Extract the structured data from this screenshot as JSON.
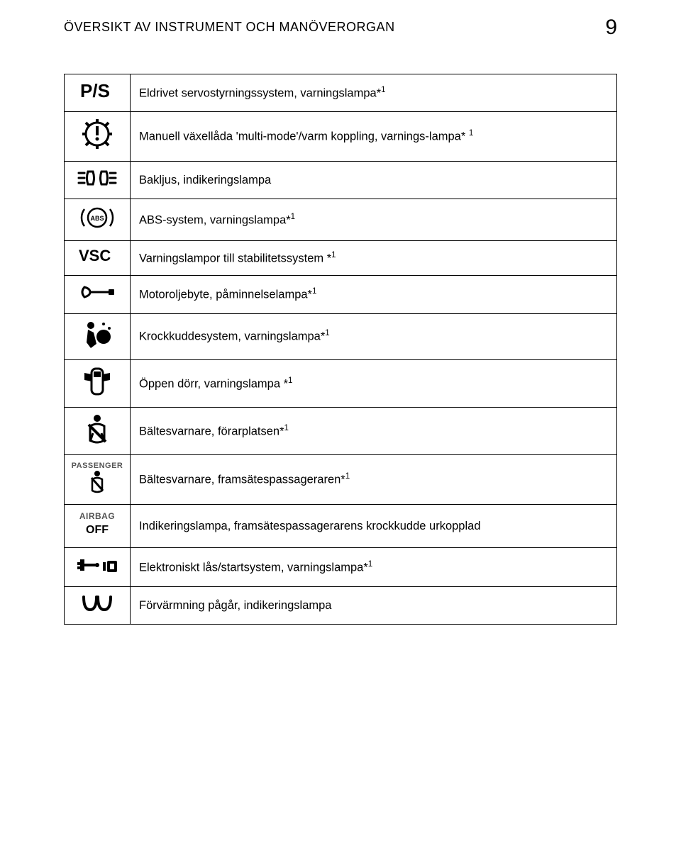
{
  "header": {
    "title": "ÖVERSIKT AV INSTRUMENT OCH MANÖVERORGAN",
    "page_number": "9"
  },
  "rows": [
    {
      "icon_name": "ps-icon",
      "text_html": "Eldrivet servostyrningssystem, varningslampa*<sup>1</sup>"
    },
    {
      "icon_name": "gear-exclaim-icon",
      "text_html": "Manuell växellåda 'multi-mode'/varm koppling, varnings-lampa* <sup>1</sup>"
    },
    {
      "icon_name": "rear-light-icon",
      "text_html": "Bakljus, indikeringslampa"
    },
    {
      "icon_name": "abs-icon",
      "text_html": "ABS-system, varningslampa*<sup>1</sup>"
    },
    {
      "icon_name": "vsc-icon",
      "text_html": "Varningslampor till stabilitetssystem *<sup>1</sup>"
    },
    {
      "icon_name": "wrench-icon",
      "text_html": "Motoroljebyte, påminnelselampa*<sup>1</sup>"
    },
    {
      "icon_name": "airbag-person-icon",
      "text_html": "Krockkuddesystem, varningslampa*<sup>1</sup>"
    },
    {
      "icon_name": "door-open-icon",
      "text_html": "Öppen dörr, varningslampa *<sup>1</sup>"
    },
    {
      "icon_name": "seatbelt-driver-icon",
      "text_html": "Bältesvarnare, förarplatsen*<sup>1</sup>"
    },
    {
      "icon_name": "passenger-seatbelt-icon",
      "text_html": "Bältesvarnare, framsätespassageraren*<sup>1</sup>"
    },
    {
      "icon_name": "airbag-off-icon",
      "text_html": "Indikeringslampa, framsätespassagerarens krockkudde urkopplad"
    },
    {
      "icon_name": "key-lock-icon",
      "text_html": "Elektroniskt lås/startsystem, varningslampa*<sup>1</sup>"
    },
    {
      "icon_name": "glow-plug-icon",
      "text_html": "Förvärmning pågår, indikeringslampa"
    }
  ]
}
